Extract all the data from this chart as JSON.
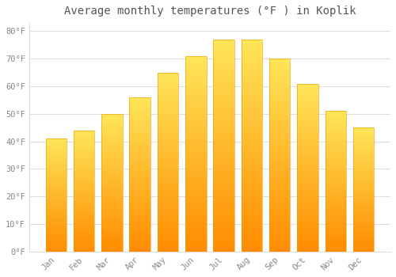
{
  "months": [
    "Jan",
    "Feb",
    "Mar",
    "Apr",
    "May",
    "Jun",
    "Jul",
    "Aug",
    "Sep",
    "Oct",
    "Nov",
    "Dec"
  ],
  "values": [
    41,
    44,
    50,
    56,
    65,
    71,
    77,
    77,
    70,
    61,
    51,
    45
  ],
  "bar_color_top": "#FFD966",
  "bar_color_bottom": "#FFA500",
  "bar_edge_color": "#E89800",
  "title": "Average monthly temperatures (°F ) in Koplik",
  "title_fontsize": 10,
  "ylim": [
    0,
    83
  ],
  "yticks": [
    0,
    10,
    20,
    30,
    40,
    50,
    60,
    70,
    80
  ],
  "background_color": "#FFFFFF",
  "grid_color": "#DDDDDD",
  "tick_label_color": "#888888",
  "title_color": "#555555",
  "font_family": "monospace",
  "bar_width": 0.75
}
